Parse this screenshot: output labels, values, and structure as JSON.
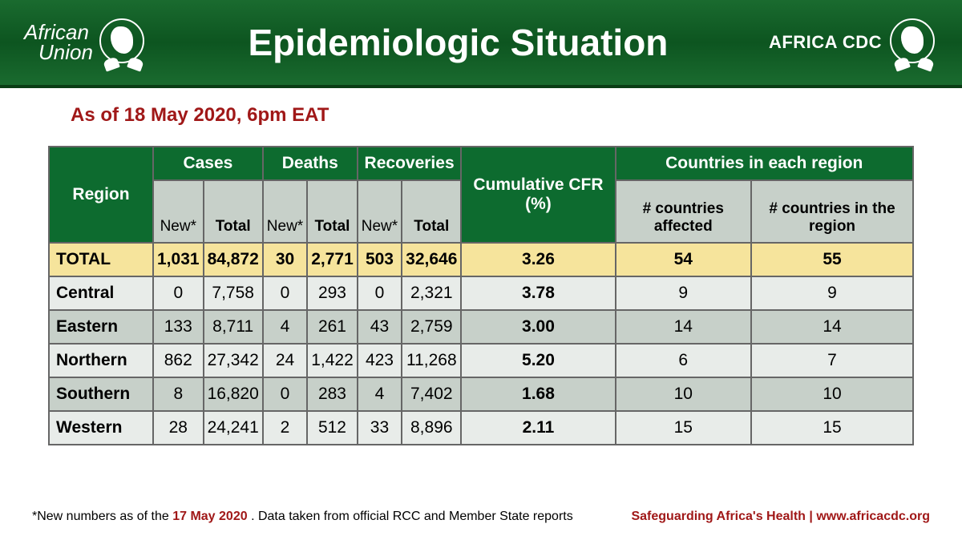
{
  "header": {
    "au_line1": "African",
    "au_line2": "Union",
    "title": "Epidemiologic Situation",
    "cdc": "AFRICA CDC"
  },
  "asof": "As of 18 May 2020, 6pm EAT",
  "table": {
    "columns": {
      "region": "Region",
      "cases": "Cases",
      "deaths": "Deaths",
      "recoveries": "Recoveries",
      "cfr": "Cumulative CFR (%)",
      "countries": "Countries in each region",
      "new": "New*",
      "total": "Total",
      "affected": "# countries affected",
      "inregion": "# countries in the region"
    },
    "totalLabel": "TOTAL",
    "total": {
      "cases_new": "1,031",
      "cases_total": "84,872",
      "deaths_new": "30",
      "deaths_total": "2,771",
      "rec_new": "503",
      "rec_total": "32,646",
      "cfr": "3.26",
      "affected": "54",
      "inregion": "55"
    },
    "rows": [
      {
        "region": "Central",
        "cn": "0",
        "ct": "7,758",
        "dn": "0",
        "dt": "293",
        "rn": "0",
        "rt": "2,321",
        "cfr": "3.78",
        "af": "9",
        "ir": "9",
        "alt": false
      },
      {
        "region": "Eastern",
        "cn": "133",
        "ct": "8,711",
        "dn": "4",
        "dt": "261",
        "rn": "43",
        "rt": "2,759",
        "cfr": "3.00",
        "af": "14",
        "ir": "14",
        "alt": true
      },
      {
        "region": "Northern",
        "cn": "862",
        "ct": "27,342",
        "dn": "24",
        "dt": "1,422",
        "rn": "423",
        "rt": "11,268",
        "cfr": "5.20",
        "af": "6",
        "ir": "7",
        "alt": false
      },
      {
        "region": "Southern",
        "cn": "8",
        "ct": "16,820",
        "dn": "0",
        "dt": "283",
        "rn": "4",
        "rt": "7,402",
        "cfr": "1.68",
        "af": "10",
        "ir": "10",
        "alt": true
      },
      {
        "region": "Western",
        "cn": "28",
        "ct": "24,241",
        "dn": "2",
        "dt": "512",
        "rn": "33",
        "rt": "8,896",
        "cfr": "2.11",
        "af": "15",
        "ir": "15",
        "alt": false
      }
    ]
  },
  "footnote": {
    "prefix": "*New numbers as of the ",
    "date": "17 May 2020",
    "suffix": ". Data taken from official RCC and Member State reports"
  },
  "tagline": "Safeguarding Africa's Health | www.africacdc.org",
  "colors": {
    "header_bg": "#0d5520",
    "header_text": "#ffffff",
    "asof_color": "#a01818",
    "th_bg": "#0d6b2f",
    "th_text": "#ffffff",
    "subhead_bg": "#c7d0c9",
    "totalrow_bg": "#f6e49c",
    "row_alt_bg": "#c7d0c9",
    "row_plain_bg": "#e8ece9",
    "border": "#666666"
  }
}
